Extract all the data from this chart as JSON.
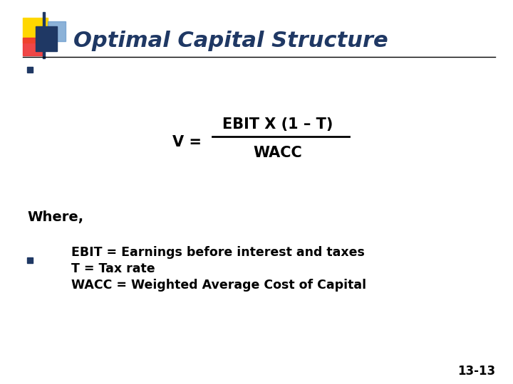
{
  "title": "Optimal Capital Structure",
  "title_color": "#1F3864",
  "title_fontsize": 22,
  "bg_color": "#FFFFFF",
  "bullet_color": "#1F3864",
  "formula_numerator": "EBIT X (1 – T)",
  "formula_v": "V =",
  "formula_denominator": "WACC",
  "where_text": "Where,",
  "line1": "EBIT = Earnings before interest and taxes",
  "line2": "T = Tax rate",
  "line3": "WACC = Weighted Average Cost of Capital",
  "page_number": "13-13",
  "decoration_colors": {
    "yellow": "#FFD700",
    "red": "#EE3333",
    "blue_dark": "#1F3864",
    "blue_light": "#6699CC"
  }
}
